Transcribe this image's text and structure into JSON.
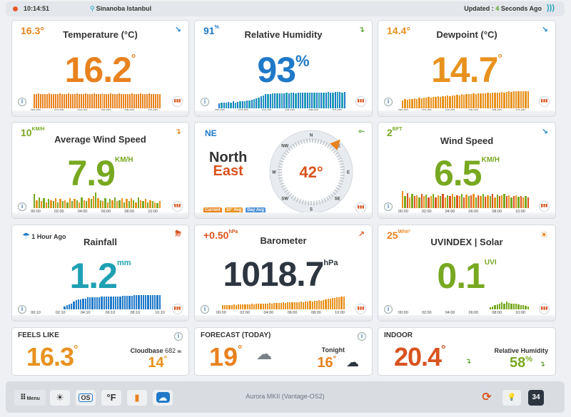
{
  "topbar": {
    "time": "10:14:51",
    "location": "Sinanoba Istanbul",
    "updated_prefix": "Updated :",
    "updated_count": "4",
    "updated_suffix": "Seconds Ago"
  },
  "temperature": {
    "title": "Temperature (°C)",
    "corner": "16.3°",
    "value": "16.2",
    "unit": "°",
    "ticks": [
      "00:00",
      "02:00",
      "04:00",
      "06:00",
      "08:00",
      "10:00"
    ],
    "bars": [
      0.7,
      0.7,
      0.75,
      0.7,
      0.72,
      0.7,
      0.72,
      0.74,
      0.7,
      0.72,
      0.7,
      0.72,
      0.74,
      0.72,
      0.7,
      0.72,
      0.74,
      0.7,
      0.7,
      0.72,
      0.74,
      0.72,
      0.7,
      0.72,
      0.74,
      0.72,
      0.7,
      0.72,
      0.74,
      0.72,
      0.7,
      0.72,
      0.74,
      0.72,
      0.7,
      0.72,
      0.74,
      0.72,
      0.7,
      0.72,
      0.74,
      0.72,
      0.7,
      0.72,
      0.7,
      0.72,
      0.74,
      0.72,
      0.7,
      0.72,
      0.74,
      0.72,
      0.7,
      0.72,
      0.74,
      0.72,
      0.7,
      0.72,
      0.7,
      0.72
    ]
  },
  "humidity": {
    "title": "Relative Humidity",
    "corner": "91",
    "corner_unit": "%",
    "value": "93",
    "unit": "%",
    "ticks": [
      "00:00",
      "02:00",
      "04:00",
      "06:00",
      "08:00",
      "10:00"
    ],
    "bars": [
      0.25,
      0.28,
      0.3,
      0.3,
      0.32,
      0.3,
      0.35,
      0.3,
      0.32,
      0.35,
      0.34,
      0.36,
      0.38,
      0.4,
      0.42,
      0.45,
      0.5,
      0.55,
      0.6,
      0.65,
      0.7,
      0.72,
      0.72,
      0.75,
      0.74,
      0.75,
      0.76,
      0.75,
      0.76,
      0.78,
      0.76,
      0.77,
      0.78,
      0.76,
      0.78,
      0.78,
      0.77,
      0.78,
      0.8,
      0.78,
      0.78,
      0.8,
      0.79,
      0.8,
      0.8,
      0.78,
      0.8,
      0.81,
      0.8,
      0.8,
      0.82,
      0.81,
      0.82,
      0.8,
      0.82
    ]
  },
  "dewpoint": {
    "title": "Dewpoint (°C)",
    "corner": "14.4°",
    "value": "14.7",
    "unit": "°",
    "ticks": [
      "00:00",
      "02:00",
      "04:00",
      "06:00",
      "08:00",
      "10:00"
    ],
    "bars": [
      0.4,
      0.45,
      0.42,
      0.48,
      0.45,
      0.5,
      0.48,
      0.52,
      0.5,
      0.55,
      0.52,
      0.56,
      0.55,
      0.58,
      0.56,
      0.6,
      0.58,
      0.62,
      0.6,
      0.64,
      0.62,
      0.66,
      0.64,
      0.68,
      0.66,
      0.7,
      0.68,
      0.72,
      0.7,
      0.72,
      0.74,
      0.72,
      0.75,
      0.74,
      0.76,
      0.75,
      0.78,
      0.76,
      0.78,
      0.8,
      0.78,
      0.8,
      0.82,
      0.8,
      0.82,
      0.84,
      0.82,
      0.84,
      0.85,
      0.84,
      0.86,
      0.85,
      0.86,
      0.85
    ]
  },
  "avgwind": {
    "title": "Average Wind Speed",
    "corner": "10",
    "corner_unit": "KM/H",
    "value": "7.9",
    "unit": "KM/H",
    "ticks": [
      "00:00",
      "02:00",
      "04:00",
      "06:00",
      "08:00",
      "10:00"
    ],
    "bars": [
      0.7,
      0.4,
      0.55,
      0.35,
      0.5,
      0.3,
      0.45,
      0.4,
      0.35,
      0.5,
      0.3,
      0.45,
      0.35,
      0.4,
      0.3,
      0.5,
      0.35,
      0.45,
      0.4,
      0.3,
      0.55,
      0.4,
      0.35,
      0.5,
      0.45,
      0.6,
      0.8,
      0.5,
      0.4,
      0.35,
      0.5,
      0.3,
      0.45,
      0.4,
      0.55,
      0.35,
      0.4,
      0.5,
      0.3,
      0.45,
      0.35,
      0.5,
      0.4,
      0.3,
      0.55,
      0.4,
      0.35,
      0.45,
      0.3,
      0.4,
      0.35,
      0.3,
      0.25,
      0.35
    ]
  },
  "compass": {
    "corner": "NE",
    "dir1": "North",
    "dir2": "East",
    "degrees": "42°",
    "angle": 42,
    "legend": [
      "Current",
      "10° Avg",
      "Day Avg"
    ],
    "labels": [
      "N",
      "NE",
      "E",
      "SE",
      "S",
      "SW",
      "W",
      "NW"
    ]
  },
  "windspeed": {
    "title": "Wind Speed",
    "corner": "2",
    "corner_unit": "BFT",
    "value": "6.5",
    "unit": "KM/H",
    "ticks": [
      "00:00",
      "02:00",
      "04:00",
      "06:00",
      "08:00",
      "10:00"
    ],
    "bars": [
      0.85,
      0.6,
      0.75,
      0.55,
      0.7,
      0.6,
      0.65,
      0.55,
      0.7,
      0.6,
      0.68,
      0.55,
      0.6,
      0.7,
      0.55,
      0.65,
      0.6,
      0.7,
      0.55,
      0.65,
      0.6,
      0.72,
      0.58,
      0.65,
      0.6,
      0.7,
      0.55,
      0.68,
      0.6,
      0.65,
      0.7,
      0.55,
      0.65,
      0.6,
      0.72,
      0.58,
      0.65,
      0.6,
      0.7,
      0.55,
      0.68,
      0.6,
      0.65,
      0.7,
      0.6,
      0.65,
      0.55,
      0.6,
      0.65,
      0.58,
      0.6,
      0.55,
      0.6,
      0.55
    ]
  },
  "rainfall": {
    "title": "Rainfall",
    "corner": "1 Hour Ago",
    "value": "1.2",
    "unit": "mm",
    "ticks": [
      "00:10",
      "02:10",
      "04:10",
      "06:10",
      "08:10",
      "10:10"
    ],
    "bars": [
      0.0,
      0.0,
      0.0,
      0.0,
      0.0,
      0.0,
      0.0,
      0.0,
      0.0,
      0.0,
      0.0,
      0.0,
      0.0,
      0.15,
      0.2,
      0.25,
      0.3,
      0.4,
      0.45,
      0.5,
      0.5,
      0.55,
      0.55,
      0.6,
      0.6,
      0.6,
      0.62,
      0.62,
      0.62,
      0.64,
      0.64,
      0.64,
      0.65,
      0.65,
      0.65,
      0.66,
      0.66,
      0.66,
      0.67,
      0.67,
      0.68,
      0.68,
      0.68,
      0.7,
      0.7,
      0.7,
      0.7,
      0.7,
      0.72,
      0.72,
      0.72,
      0.72,
      0.72,
      0.72,
      0.72
    ]
  },
  "barometer": {
    "title": "Barometer",
    "corner": "+0.50",
    "corner_unit": "hPa",
    "value": "1018.7",
    "unit": "hPa",
    "ticks": [
      "00:00",
      "02:00",
      "04:00",
      "06:00",
      "08:00",
      "10:00"
    ],
    "bars": [
      0.2,
      0.2,
      0.22,
      0.2,
      0.22,
      0.24,
      0.22,
      0.24,
      0.25,
      0.24,
      0.26,
      0.25,
      0.26,
      0.27,
      0.26,
      0.28,
      0.27,
      0.28,
      0.3,
      0.28,
      0.3,
      0.31,
      0.3,
      0.32,
      0.31,
      0.33,
      0.32,
      0.34,
      0.33,
      0.35,
      0.34,
      0.36,
      0.35,
      0.37,
      0.36,
      0.38,
      0.37,
      0.4,
      0.38,
      0.42,
      0.4,
      0.44,
      0.42,
      0.46,
      0.44,
      0.48,
      0.5,
      0.52,
      0.54,
      0.56,
      0.58,
      0.6,
      0.62,
      0.64,
      0.66
    ]
  },
  "uv": {
    "title": "UVINDEX | Solar",
    "corner": "25",
    "corner_unit": "W/m²",
    "value": "0.1",
    "unit": "UVI",
    "ticks": [
      "00:00",
      "02:00",
      "04:00",
      "06:00",
      "08:00",
      "10:00"
    ],
    "bars": [
      0,
      0,
      0,
      0,
      0,
      0,
      0,
      0,
      0,
      0,
      0,
      0,
      0,
      0,
      0,
      0,
      0,
      0,
      0,
      0,
      0,
      0,
      0,
      0,
      0,
      0,
      0,
      0,
      0,
      0,
      0,
      0,
      0,
      0,
      0,
      0,
      0,
      0.1,
      0.15,
      0.2,
      0.25,
      0.3,
      0.35,
      0.3,
      0.38,
      0.32,
      0.3,
      0.28,
      0.3,
      0.25,
      0.22,
      0.2,
      0.18,
      0.15
    ]
  },
  "feelslike": {
    "label": "FEELS LIKE",
    "value": "16.3",
    "unit": "°",
    "cloudbase_label": "Cloudbase",
    "cloudbase_value": "682",
    "cloudbase_unit": "m",
    "sub_value": "14",
    "sub_unit": "°"
  },
  "forecast": {
    "label": "FORECAST (TODAY)",
    "value": "19",
    "unit": "°",
    "tonight_label": "Tonight",
    "tonight_value": "16",
    "tonight_unit": "°"
  },
  "indoor": {
    "label": "INDOOR",
    "value": "20.4",
    "unit": "°",
    "rh_label": "Relative Humidity",
    "rh_value": "58",
    "rh_unit": "%"
  },
  "bottombar": {
    "menu": "Menu",
    "os_label": "OS",
    "unit_toggle": "°F",
    "title": "Aurora MKII (Vantage-OS2)",
    "calendar_day": "34"
  },
  "colors": {
    "orange": "#e8821e",
    "blue": "#1f79c8",
    "green": "#78a820",
    "teal": "#1fa0b3",
    "dark": "#2d3640",
    "red": "#d9531e"
  }
}
